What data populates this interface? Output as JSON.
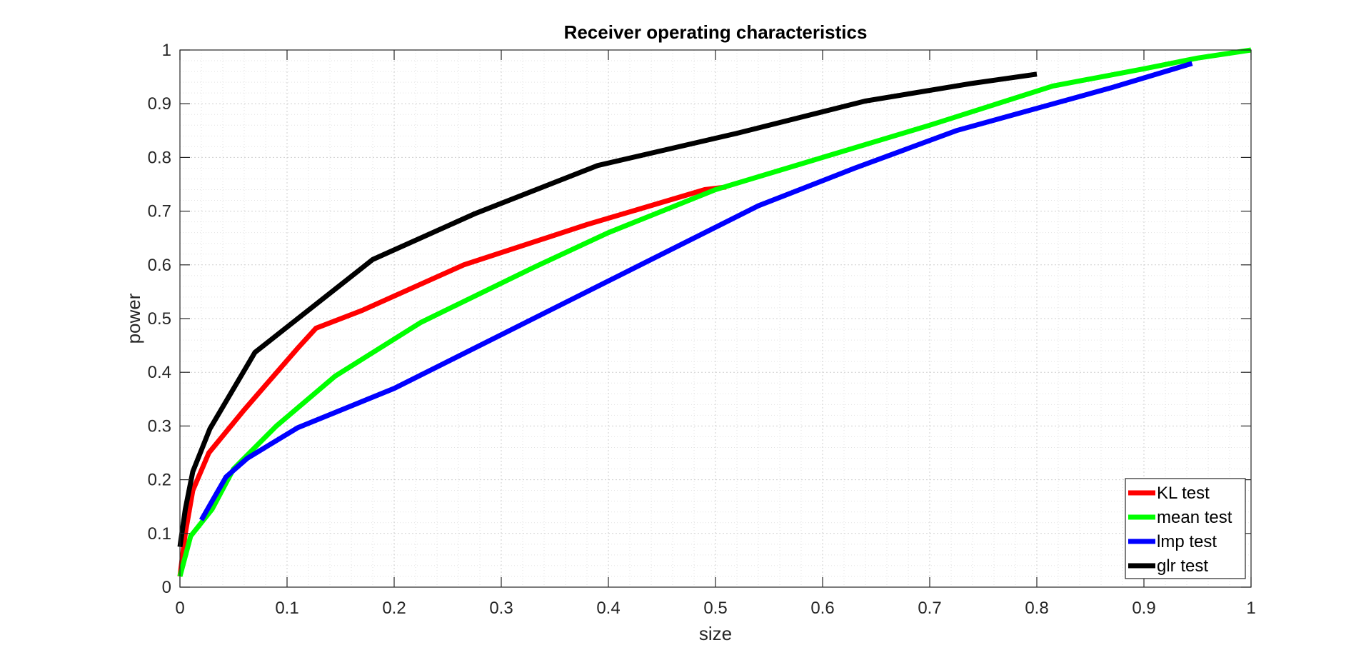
{
  "chart_data": {
    "type": "line",
    "title": "Receiver operating characteristics",
    "xlabel": "size",
    "ylabel": "power",
    "xlim": [
      0,
      1
    ],
    "ylim": [
      0,
      1
    ],
    "xticks": [
      "0",
      "0.1",
      "0.2",
      "0.3",
      "0.4",
      "0.5",
      "0.6",
      "0.7",
      "0.8",
      "0.9",
      "1"
    ],
    "yticks": [
      "0",
      "0.1",
      "0.2",
      "0.3",
      "0.4",
      "0.5",
      "0.6",
      "0.7",
      "0.8",
      "0.9",
      "1"
    ],
    "grid": true,
    "minor_grid": true,
    "legend_position": "bottom-right",
    "series": [
      {
        "name": "KL test",
        "color": "#ff0000",
        "points": [
          [
            0,
            0.02
          ],
          [
            0.005,
            0.1
          ],
          [
            0.012,
            0.18
          ],
          [
            0.027,
            0.25
          ],
          [
            0.06,
            0.33
          ],
          [
            0.11,
            0.445
          ],
          [
            0.127,
            0.482
          ],
          [
            0.17,
            0.515
          ],
          [
            0.265,
            0.6
          ],
          [
            0.38,
            0.675
          ],
          [
            0.49,
            0.74
          ],
          [
            0.51,
            0.745
          ]
        ]
      },
      {
        "name": "mean test",
        "color": "#00ff00",
        "points": [
          [
            0,
            0.02
          ],
          [
            0.01,
            0.095
          ],
          [
            0.03,
            0.145
          ],
          [
            0.05,
            0.22
          ],
          [
            0.09,
            0.3
          ],
          [
            0.145,
            0.393
          ],
          [
            0.225,
            0.493
          ],
          [
            0.33,
            0.595
          ],
          [
            0.4,
            0.66
          ],
          [
            0.5,
            0.74
          ],
          [
            0.6,
            0.8
          ],
          [
            0.7,
            0.86
          ],
          [
            0.815,
            0.933
          ],
          [
            0.9,
            0.965
          ],
          [
            0.95,
            0.985
          ],
          [
            1.0,
            1.0
          ]
        ]
      },
      {
        "name": "lmp test",
        "color": "#0000ff",
        "points": [
          [
            0.02,
            0.125
          ],
          [
            0.03,
            0.16
          ],
          [
            0.043,
            0.205
          ],
          [
            0.063,
            0.24
          ],
          [
            0.11,
            0.297
          ],
          [
            0.2,
            0.37
          ],
          [
            0.3,
            0.47
          ],
          [
            0.4,
            0.57
          ],
          [
            0.54,
            0.71
          ],
          [
            0.63,
            0.78
          ],
          [
            0.725,
            0.85
          ],
          [
            0.87,
            0.93
          ],
          [
            0.945,
            0.975
          ]
        ]
      },
      {
        "name": "glr test",
        "color": "#000000",
        "points": [
          [
            0,
            0.075
          ],
          [
            0.005,
            0.145
          ],
          [
            0.012,
            0.215
          ],
          [
            0.028,
            0.295
          ],
          [
            0.07,
            0.437
          ],
          [
            0.18,
            0.61
          ],
          [
            0.275,
            0.695
          ],
          [
            0.39,
            0.785
          ],
          [
            0.52,
            0.845
          ],
          [
            0.64,
            0.905
          ],
          [
            0.74,
            0.938
          ],
          [
            0.8,
            0.955
          ]
        ]
      }
    ]
  }
}
